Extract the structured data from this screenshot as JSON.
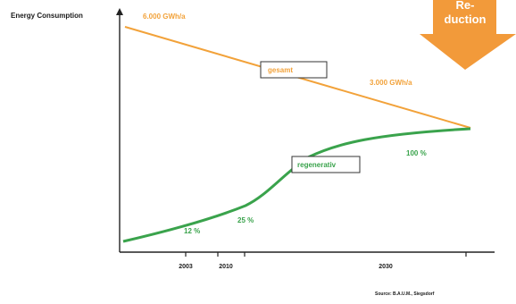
{
  "chart_data": {
    "type": "line",
    "title": "Energy Consumption",
    "x": [
      2000,
      2050
    ],
    "xticks": [
      "2003",
      "2010",
      "2030"
    ],
    "ylim": [
      0,
      7000
    ],
    "series": [
      {
        "name": "gesamt",
        "color": "#f2a23a",
        "start": [
          2000,
          6000
        ],
        "end": [
          2050,
          3000
        ]
      },
      {
        "name": "regenerativ",
        "color": "#3aa34c",
        "points": [
          [
            2000,
            300
          ],
          [
            2010,
            900
          ],
          [
            2022,
            2400
          ],
          [
            2033,
            3800
          ],
          [
            2050,
            3000
          ]
        ]
      }
    ],
    "annotations": {
      "start_value": "6.000 GWh/a",
      "end_value": "3.000 GWh/a",
      "pct_2003": "12 %",
      "pct_2010": "25 %",
      "pct_end": "100 %"
    },
    "source": "Source: B.A.U.M., Siegsdorf"
  },
  "banner": {
    "line1": "Re-",
    "line2": "duction",
    "color": "#f29a3a"
  }
}
